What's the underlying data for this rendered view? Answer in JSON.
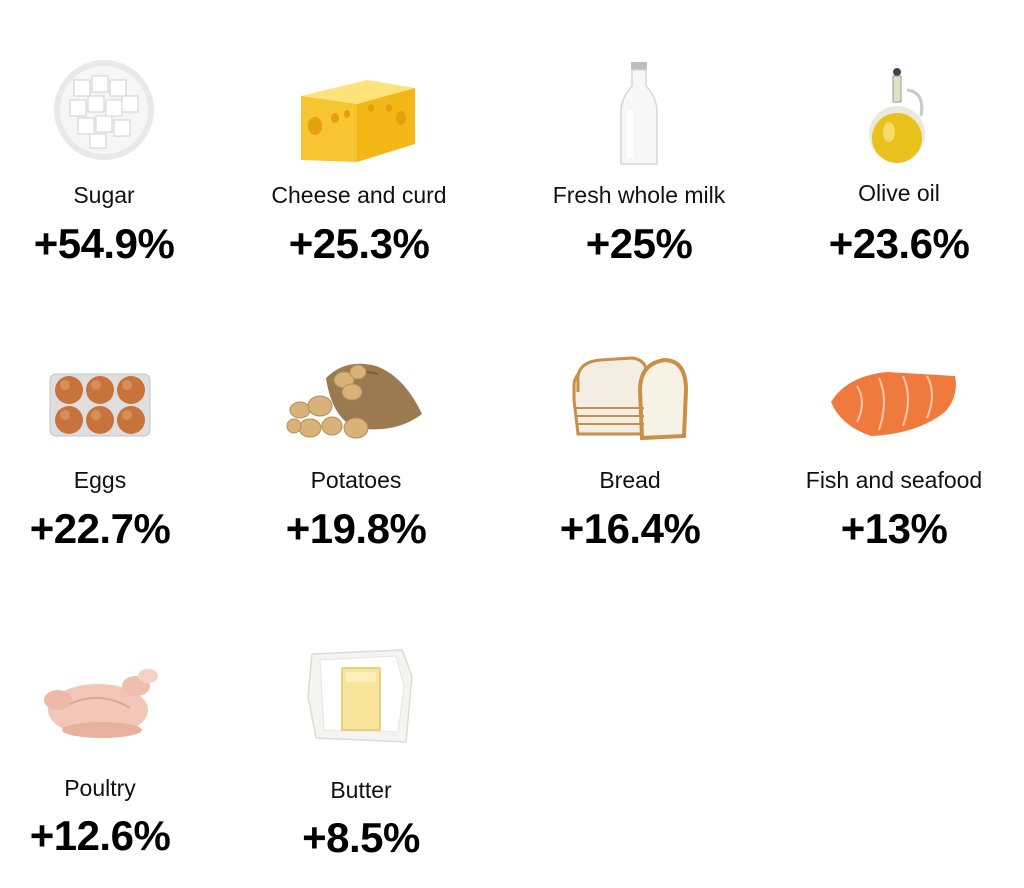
{
  "items": [
    {
      "label": "Sugar",
      "value": "+54.9%",
      "icon": "sugar-cubes-icon"
    },
    {
      "label": "Cheese and curd",
      "value": "+25.3%",
      "icon": "cheese-icon"
    },
    {
      "label": "Fresh whole milk",
      "value": "+25%",
      "icon": "milk-bottle-icon"
    },
    {
      "label": "Olive oil",
      "value": "+23.6%",
      "icon": "olive-oil-icon"
    },
    {
      "label": "Eggs",
      "value": "+22.7%",
      "icon": "eggs-icon"
    },
    {
      "label": "Potatoes",
      "value": "+19.8%",
      "icon": "potatoes-icon"
    },
    {
      "label": "Bread",
      "value": "+16.4%",
      "icon": "bread-icon"
    },
    {
      "label": "Fish and seafood",
      "value": "+13%",
      "icon": "salmon-icon"
    },
    {
      "label": "Poultry",
      "value": "+12.6%",
      "icon": "chicken-icon"
    },
    {
      "label": "Butter",
      "value": "+8.5%",
      "icon": "butter-icon"
    }
  ]
}
